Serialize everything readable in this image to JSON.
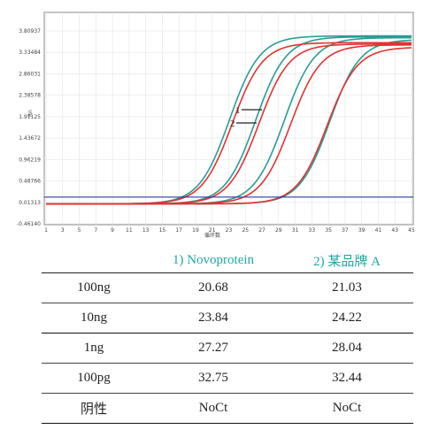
{
  "chart_data": [
    {
      "type": "line",
      "ylabel": "Rn",
      "xlabel": "循环数",
      "y_ticks": [
        "3.80937",
        "3.33484",
        "2.86031",
        "2.38578",
        "1.91125",
        "1.43672",
        "0.96219",
        "0.48766",
        "0.01313",
        "-0.46140"
      ],
      "y_tick_values": [
        3.80937,
        3.33484,
        2.86031,
        2.38578,
        1.91125,
        1.43672,
        0.96219,
        0.48766,
        0.01313,
        -0.4614
      ],
      "x_ticks": [
        "1",
        "3",
        "5",
        "7",
        "9",
        "11",
        "13",
        "15",
        "17",
        "19",
        "21",
        "23",
        "25",
        "27",
        "29",
        "31",
        "33",
        "35",
        "37",
        "39",
        "41",
        "43",
        "45"
      ],
      "xlim": [
        1,
        45
      ],
      "ylim": [
        -0.4614,
        3.9
      ],
      "threshold": 0.13,
      "annotations": [
        "1",
        "2"
      ],
      "colors": {
        "series_1": "#2a9d94",
        "series_2": "#e33232",
        "threshold": "#2b3a9e",
        "frame": "#8a8a8a"
      },
      "series": [
        {
          "group": 1,
          "ct": 20.68,
          "plateau": 3.7
        },
        {
          "group": 1,
          "ct": 23.84,
          "plateau": 3.68
        },
        {
          "group": 1,
          "ct": 27.27,
          "plateau": 3.66
        },
        {
          "group": 1,
          "ct": 32.75,
          "plateau": 3.62
        },
        {
          "group": 2,
          "ct": 21.03,
          "plateau": 3.55
        },
        {
          "group": 2,
          "ct": 24.22,
          "plateau": 3.52
        },
        {
          "group": 2,
          "ct": 28.04,
          "plateau": 3.5
        },
        {
          "group": 2,
          "ct": 32.44,
          "plateau": 3.45
        }
      ]
    },
    {
      "type": "table",
      "columns": [
        "",
        "1) Novoprotein",
        "2) 某品牌 A"
      ],
      "rows": [
        [
          "100ng",
          "20.68",
          "21.03"
        ],
        [
          "10ng",
          "23.84",
          "24.22"
        ],
        [
          "1ng",
          "27.27",
          "28.04"
        ],
        [
          "100pg",
          "32.75",
          "32.44"
        ],
        [
          "阴性",
          "NoCt",
          "NoCt"
        ]
      ]
    }
  ]
}
